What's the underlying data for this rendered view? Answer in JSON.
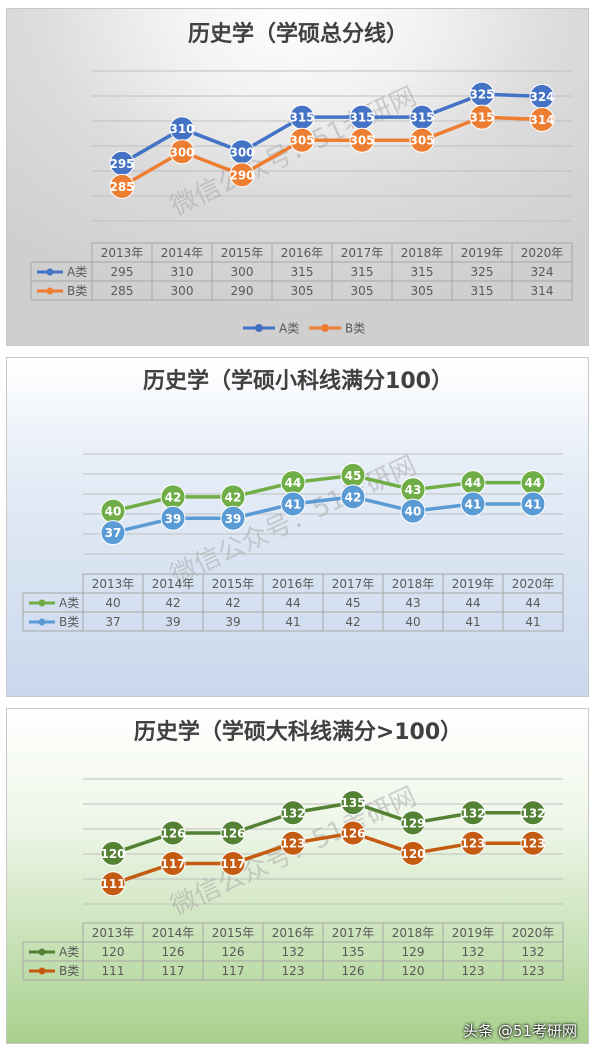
{
  "watermark": "微信公众号：51考研网",
  "footer_text": "头条 @51考研网",
  "chart_data": [
    {
      "type": "line",
      "title": "历史学（学硕总分线）",
      "categories": [
        "2013年",
        "2014年",
        "2015年",
        "2016年",
        "2017年",
        "2018年",
        "2019年",
        "2020年"
      ],
      "series": [
        {
          "name": "A类",
          "values": [
            295,
            310,
            300,
            315,
            315,
            315,
            325,
            324
          ],
          "color": "#4472C4"
        },
        {
          "name": "B类",
          "values": [
            285,
            300,
            290,
            305,
            305,
            305,
            315,
            314
          ],
          "color": "#ED7D31"
        }
      ],
      "ylim": [
        270,
        335
      ],
      "grid": true,
      "legend": "bottom",
      "data_table": true
    },
    {
      "type": "line",
      "title": "历史学（学硕小科线满分100）",
      "categories": [
        "2013年",
        "2014年",
        "2015年",
        "2016年",
        "2017年",
        "2018年",
        "2019年",
        "2020年"
      ],
      "series": [
        {
          "name": "A类",
          "values": [
            40,
            42,
            42,
            44,
            45,
            43,
            44,
            44
          ],
          "color": "#70AD47"
        },
        {
          "name": "B类",
          "values": [
            37,
            39,
            39,
            41,
            42,
            40,
            41,
            41
          ],
          "color": "#5B9BD5"
        }
      ],
      "ylim": [
        34,
        48
      ],
      "grid": true,
      "legend": "none",
      "data_table": true
    },
    {
      "type": "line",
      "title": "历史学（学硕大科线满分>100）",
      "categories": [
        "2013年",
        "2014年",
        "2015年",
        "2016年",
        "2017年",
        "2018年",
        "2019年",
        "2020年"
      ],
      "series": [
        {
          "name": "A类",
          "values": [
            120,
            126,
            126,
            132,
            135,
            129,
            132,
            132
          ],
          "color": "#548235"
        },
        {
          "name": "B类",
          "values": [
            111,
            117,
            117,
            123,
            126,
            120,
            123,
            123
          ],
          "color": "#C55A11"
        }
      ],
      "ylim": [
        105,
        142
      ],
      "grid": true,
      "legend": "none",
      "data_table": true
    }
  ]
}
